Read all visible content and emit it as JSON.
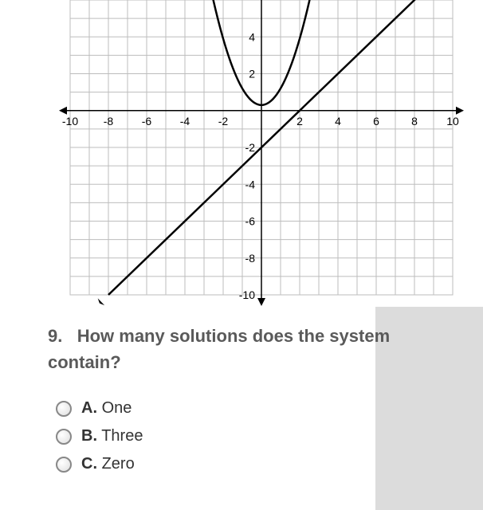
{
  "graph": {
    "xlim": [
      -10,
      10
    ],
    "ylim": [
      -10,
      6
    ],
    "xtick_step": 2,
    "ytick_step": 2,
    "x_labels": [
      "-10",
      "-8",
      "-6",
      "-4",
      "-2",
      "2",
      "4",
      "6",
      "8",
      "10"
    ],
    "y_labels": [
      "4",
      "2",
      "-2",
      "-4",
      "-6",
      "-8",
      "-10"
    ],
    "axis_color": "#000000",
    "grid_color": "#bdbdbd",
    "background_color": "#ffffff",
    "line_color": "#000000",
    "line_width": 2,
    "curves": {
      "parabola": {
        "type": "parabola",
        "vertex_x": 0,
        "vertex_y": 0.3,
        "coefficient": 0.9,
        "x_range": [
          -3,
          3
        ]
      },
      "line": {
        "type": "line",
        "slope": 1,
        "intercept": -2,
        "x_range": [
          -8,
          10
        ],
        "arrow_start": true
      }
    },
    "label_fontsize": 14,
    "label_color": "#000000"
  },
  "question": {
    "number": "9.",
    "text": "How many solutions does the system contain?"
  },
  "answers": [
    {
      "letter": "A.",
      "text": "One"
    },
    {
      "letter": "B.",
      "text": "Three"
    },
    {
      "letter": "C.",
      "text": "Zero"
    }
  ]
}
